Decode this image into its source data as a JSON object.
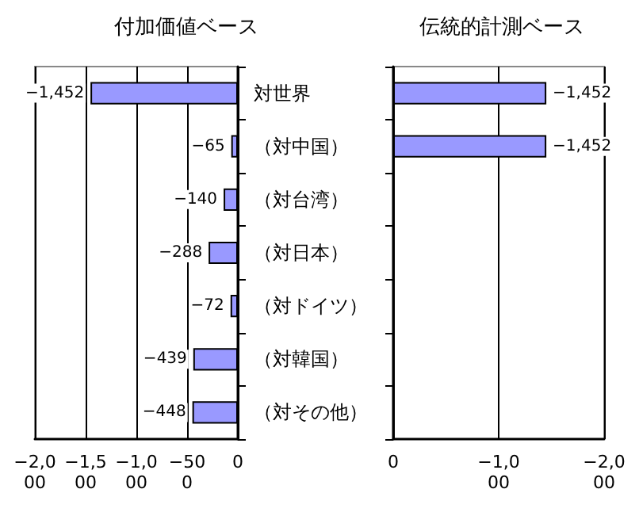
{
  "chart_data": [
    {
      "type": "bar",
      "title": "付加価値ベース",
      "orientation": "horizontal",
      "categories": [
        "対世界",
        "（対中国）",
        "（対台湾）",
        "（対日本）",
        "（対ドイツ）",
        "（対韓国）",
        "（対その他）"
      ],
      "series": [
        {
          "color": "#9999ff",
          "values": [
            -1452,
            -65,
            -140,
            -288,
            -72,
            -439,
            -448
          ],
          "value_labels": [
            "−1,452",
            "−65",
            "−140",
            "−288",
            "−72",
            "−439",
            "−448"
          ]
        }
      ],
      "xlim": [
        -2000,
        0
      ],
      "xticks": [
        {
          "value": -2000,
          "label": "−2,000"
        },
        {
          "value": -1500,
          "label": "−1,500"
        },
        {
          "value": -1000,
          "label": "−1,000"
        },
        {
          "value": -500,
          "label": "−500"
        },
        0
      ],
      "grid": "x"
    },
    {
      "type": "bar",
      "title": "伝統的計測ベース",
      "orientation": "horizontal",
      "categories": [
        null,
        null,
        null,
        null,
        null,
        null,
        null
      ],
      "series": [
        {
          "color": "#9999ff",
          "values": [
            -1452,
            -1452,
            null,
            null,
            null,
            null,
            null
          ],
          "value_labels": [
            "−1,452",
            "−1,452",
            null,
            null,
            null,
            null,
            null
          ]
        }
      ],
      "xlim": [
        0,
        -2000
      ],
      "xticks": [
        0,
        {
          "value": -1000,
          "label": "−1,000"
        },
        {
          "value": -2000,
          "label": "−2,000"
        }
      ],
      "grid": "x",
      "tick_labels": "x"
    }
  ]
}
